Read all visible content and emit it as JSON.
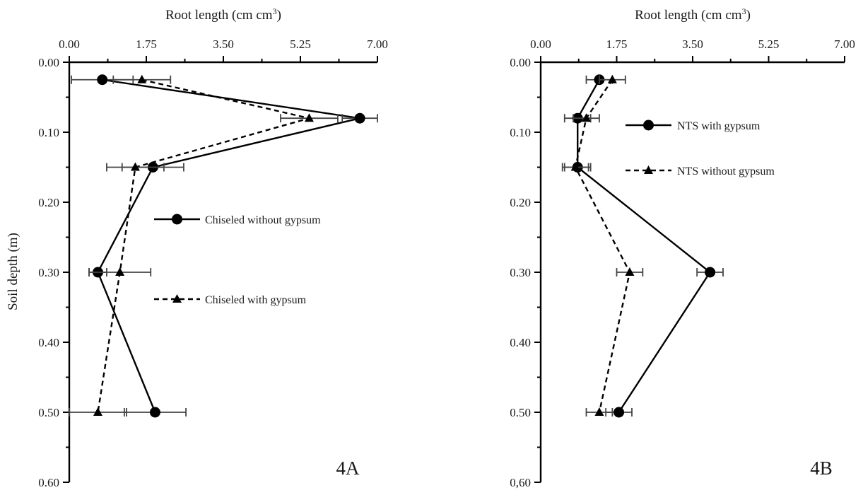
{
  "chart_data": [
    {
      "type": "line",
      "panel_label": "4A",
      "xlabel_main": "Root length (cm cm",
      "xlabel_sup": "3",
      "xlabel_tail": ")",
      "ylabel": "Soil depth (m)",
      "xlim": [
        0,
        7
      ],
      "ylim": [
        0,
        0.6
      ],
      "x_tick_labels": [
        "0.00",
        "1.75",
        "3.50",
        "5.25",
        "7.00"
      ],
      "x_tick_values": [
        0,
        1.75,
        3.5,
        5.25,
        7
      ],
      "y_tick_labels": [
        "0.00",
        "0.10",
        "0.20",
        "0.30",
        "0.40",
        "0.50",
        "0.60"
      ],
      "y_tick_values": [
        0,
        0.1,
        0.2,
        0.3,
        0.4,
        0.5,
        0.6
      ],
      "series": [
        {
          "name": "Chiseled without gypsum",
          "marker": "circle",
          "dash": "solid",
          "points": [
            {
              "depth": 0.025,
              "length": 0.75,
              "err": 0.7
            },
            {
              "depth": 0.08,
              "length": 6.6,
              "err": 0.4
            },
            {
              "depth": 0.15,
              "length": 1.9,
              "err": 0.7
            },
            {
              "depth": 0.3,
              "length": 0.65,
              "err": 0.2
            },
            {
              "depth": 0.5,
              "length": 1.95,
              "err": 0.7
            }
          ]
        },
        {
          "name": "Chiseled with gypsum",
          "marker": "triangle",
          "dash": "dashed",
          "points": [
            {
              "depth": 0.025,
              "length": 1.65,
              "err": 0.65
            },
            {
              "depth": 0.08,
              "length": 5.45,
              "err": 0.65
            },
            {
              "depth": 0.15,
              "length": 1.5,
              "err": 0.65
            },
            {
              "depth": 0.3,
              "length": 1.15,
              "err": 0.7
            },
            {
              "depth": 0.5,
              "length": 0.65,
              "err": 0.65
            }
          ]
        }
      ]
    },
    {
      "type": "line",
      "panel_label": "4B",
      "xlabel_main": "Root length (cm cm",
      "xlabel_sup": "3",
      "xlabel_tail": ")",
      "ylabel": "",
      "xlim": [
        0,
        7
      ],
      "ylim": [
        0,
        0.6
      ],
      "x_tick_labels": [
        "0.00",
        "1.75",
        "3.50",
        "5.25",
        "7.00"
      ],
      "x_tick_values": [
        0,
        1.75,
        3.5,
        5.25,
        7
      ],
      "y_tick_labels": [
        "0.00",
        "0.10",
        "0.20",
        "0.30",
        "0.40",
        "0.50",
        "0,60"
      ],
      "y_tick_values": [
        0,
        0.1,
        0.2,
        0.3,
        0.4,
        0.5,
        0.6
      ],
      "series": [
        {
          "name": "NTS with gypsum",
          "marker": "circle",
          "dash": "solid",
          "points": [
            {
              "depth": 0.025,
              "length": 1.35,
              "err": 0.3
            },
            {
              "depth": 0.08,
              "length": 0.85,
              "err": 0.3
            },
            {
              "depth": 0.15,
              "length": 0.85,
              "err": 0.3
            },
            {
              "depth": 0.3,
              "length": 3.9,
              "err": 0.3
            },
            {
              "depth": 0.5,
              "length": 1.8,
              "err": 0.3
            }
          ]
        },
        {
          "name": "NTS without gypsum",
          "marker": "triangle",
          "dash": "dashed",
          "points": [
            {
              "depth": 0.025,
              "length": 1.65,
              "err": 0.3
            },
            {
              "depth": 0.08,
              "length": 1.05,
              "err": 0.3
            },
            {
              "depth": 0.15,
              "length": 0.8,
              "err": 0.3
            },
            {
              "depth": 0.3,
              "length": 2.05,
              "err": 0.3
            },
            {
              "depth": 0.5,
              "length": 1.35,
              "err": 0.3
            }
          ]
        }
      ]
    }
  ]
}
